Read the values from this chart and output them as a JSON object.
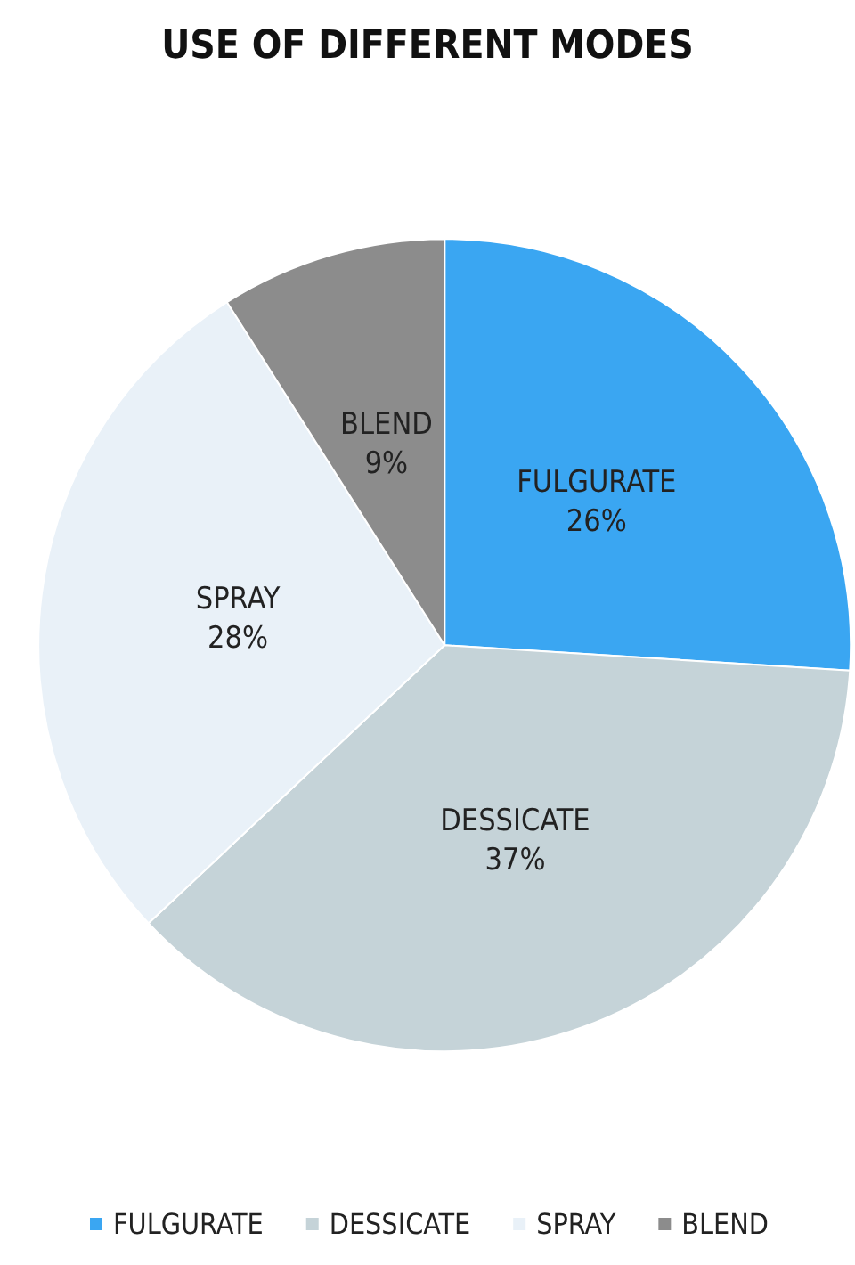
{
  "chart_data": {
    "type": "pie",
    "title": "USE OF DIFFERENT MODES",
    "categories": [
      "FULGURATE",
      "DESSICATE",
      "SPRAY",
      "BLEND"
    ],
    "values": [
      26,
      37,
      28,
      9
    ],
    "value_labels": [
      "26%",
      "37%",
      "28%",
      "9%"
    ],
    "colors": [
      "#3aa6f2",
      "#c5d3d8",
      "#e9f1f8",
      "#8c8c8c"
    ],
    "legend": "bottom"
  }
}
